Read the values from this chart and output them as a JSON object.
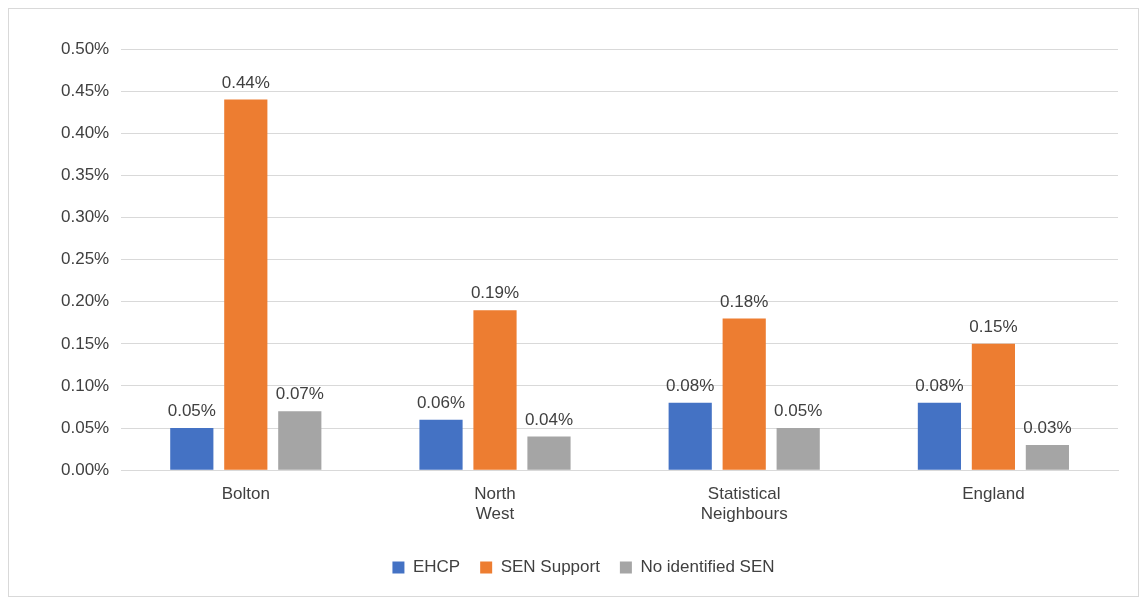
{
  "chart_data": {
    "type": "bar",
    "categories": [
      "Bolton",
      "North West",
      "Statistical Neighbours",
      "England"
    ],
    "series": [
      {
        "name": "EHCP",
        "color": "#4472c4",
        "values": [
          0.05,
          0.06,
          0.08,
          0.08
        ],
        "value_labels": [
          "0.05%",
          "0.06%",
          "0.08%",
          "0.08%"
        ]
      },
      {
        "name": "SEN Support",
        "color": "#ed7d31",
        "values": [
          0.44,
          0.19,
          0.18,
          0.15
        ],
        "value_labels": [
          "0.44%",
          "0.19%",
          "0.18%",
          "0.15%"
        ]
      },
      {
        "name": "No identified SEN",
        "color": "#a5a5a5",
        "values": [
          0.07,
          0.04,
          0.05,
          0.03
        ],
        "value_labels": [
          "0.07%",
          "0.04%",
          "0.05%",
          "0.03%"
        ]
      }
    ],
    "ylim": [
      0,
      0.5
    ],
    "yticks": [
      {
        "value": 0,
        "label": "0.00%"
      },
      {
        "value": 0.05,
        "label": "0.05%"
      },
      {
        "value": 0.1,
        "label": "0.10%"
      },
      {
        "value": 0.15,
        "label": "0.15%"
      },
      {
        "value": 0.2,
        "label": "0.20%"
      },
      {
        "value": 0.25,
        "label": "0.25%"
      },
      {
        "value": 0.3,
        "label": "0.30%"
      },
      {
        "value": 0.35,
        "label": "0.35%"
      },
      {
        "value": 0.4,
        "label": "0.40%"
      },
      {
        "value": 0.45,
        "label": "0.45%"
      },
      {
        "value": 0.5,
        "label": "0.50%"
      }
    ],
    "grid": "y",
    "legend": "bottom"
  }
}
